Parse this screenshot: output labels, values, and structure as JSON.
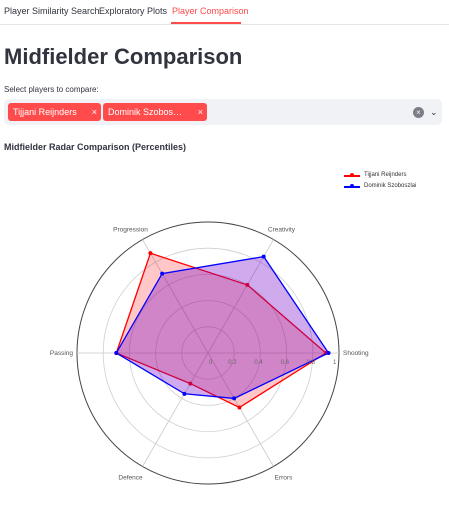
{
  "tabs": [
    {
      "label": "Player Similarity Search",
      "active": false
    },
    {
      "label": "Exploratory Plots",
      "active": false
    },
    {
      "label": "Player Comparison",
      "active": true
    }
  ],
  "page_title": "Midfielder Comparison",
  "select": {
    "label": "Select players to compare:",
    "chips": [
      {
        "label": "Tijjani Reijnders"
      },
      {
        "label": "Dominik Szobos…"
      }
    ],
    "remove_glyph": "×",
    "clear_glyph": "×",
    "chevron_glyph": "⌄"
  },
  "colors": {
    "accent": "#ff4b4b",
    "series1": "#ff0000",
    "series2": "#0000ff"
  },
  "chart_data": {
    "type": "radar",
    "title": "Midfielder Radar Comparison (Percentiles)",
    "axes": [
      "Shooting",
      "Creativity",
      "Progression",
      "Passing",
      "Defence",
      "Errors"
    ],
    "radial_ticks": [
      "0",
      "0.2",
      "0.4",
      "0.6",
      "0.8",
      "1"
    ],
    "rlim": [
      0,
      1
    ],
    "legend_position": "top-right",
    "series": [
      {
        "name": "Tijjani Reijnders",
        "color": "#ff0000",
        "fill": "rgba(255,0,0,0.22)",
        "values": [
          0.9,
          0.6,
          0.88,
          0.7,
          0.27,
          0.48
        ]
      },
      {
        "name": "Dominik Szoboszlai",
        "color": "#0000ff",
        "fill": "rgba(110,0,200,0.33)",
        "values": [
          0.92,
          0.85,
          0.7,
          0.7,
          0.36,
          0.4
        ]
      }
    ]
  }
}
